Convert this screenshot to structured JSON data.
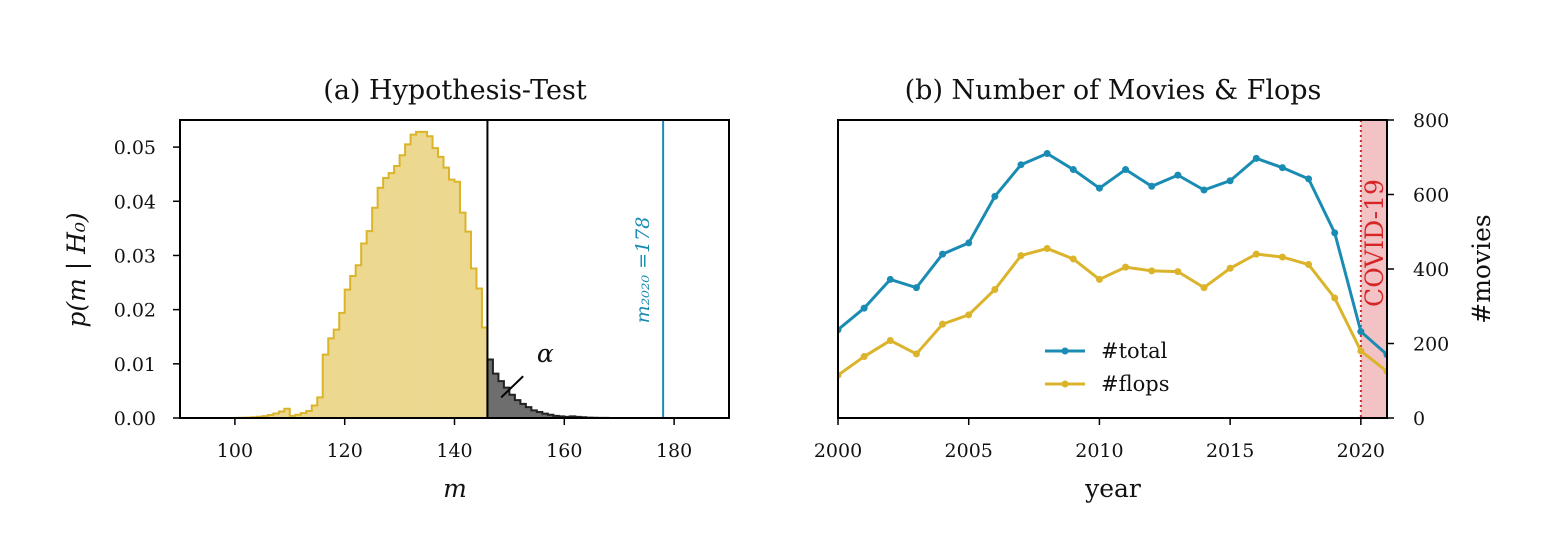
{
  "colors": {
    "yellow": "#dbb42c",
    "yellow_fill": "#ecd88e",
    "gray_fill": "#6e6e6e",
    "blue": "#1a8cb3",
    "covid": "#d62728",
    "covid_band": "#f3c2c5"
  },
  "chart_data": [
    {
      "type": "histogram",
      "title": "(a) Hypothesis-Test",
      "xlabel": "m",
      "ylabel": "p(m | H₀)",
      "xlim": [
        90,
        190
      ],
      "ylim": [
        0,
        0.055
      ],
      "xticks": [
        "100",
        "120",
        "140",
        "160",
        "180"
      ],
      "yticks": [
        "0.00",
        "0.01",
        "0.02",
        "0.03",
        "0.04",
        "0.05"
      ],
      "bin_start": 90,
      "bin_width": 1,
      "threshold": 146,
      "values": [
        0,
        0,
        0,
        0,
        0,
        0,
        0,
        0,
        0,
        0,
        2e-05,
        4e-05,
        8e-05,
        0.00013,
        0.00022,
        0.00035,
        0.00055,
        0.00083,
        0.0012,
        0.0017,
        0.0023,
        0.0031,
        0.0041,
        0.0054,
        0.0069,
        0.0086,
        0.0106,
        0.0128,
        0.0152,
        0.0178,
        0.0205,
        0.0233,
        0.0262,
        0.029,
        0.0318,
        0.0344,
        0.0368,
        0.0389,
        0.0408,
        0.0423,
        0.0435,
        0.0441,
        0.0441,
        0.0438,
        0.0431,
        0.042,
        0.0405,
        0.0388,
        0.0369,
        0.0347,
        0.0324,
        0.0299,
        0.0273,
        0.0247,
        0.0221,
        0.0195,
        0.017,
        0.0147,
        0.0125,
        0.0105,
        0.0087,
        0.0071,
        0.0057,
        0.0045,
        0.0035,
        0.0026,
        0.0019,
        0.0014,
        0.001,
        0.0007,
        0.0005,
        0.0003,
        0.0002,
        0.00013,
        8e-05,
        5e-05,
        3e-05,
        2e-05,
        1e-05,
        0
      ],
      "peak_override": {
        "130": 0.0485,
        "131": 0.0505,
        "132": 0.0523,
        "133": 0.0528,
        "134": 0.0528,
        "135": 0.052,
        "136": 0.0498,
        "137": 0.0482,
        "138": 0.0462,
        "139": 0.044,
        "120": 0.0237,
        "121": 0.0262,
        "122": 0.0282,
        "123": 0.0322,
        "124": 0.0345,
        "125": 0.0388,
        "126": 0.0425,
        "127": 0.0443,
        "128": 0.0452,
        "129": 0.0465,
        "116": 0.0117,
        "117": 0.0147,
        "118": 0.0163,
        "119": 0.0194,
        "140": 0.0436,
        "141": 0.0379,
        "142": 0.0344,
        "143": 0.0276,
        "144": 0.0239,
        "145": 0.0167,
        "146": 0.0108,
        "147": 0.0082,
        "148": 0.0068,
        "149": 0.0056,
        "150": 0.0043,
        "151": 0.0033,
        "152": 0.0026,
        "153": 0.002,
        "154": 0.0014,
        "155": 0.0011,
        "156": 0.0008,
        "157": 0.0006,
        "158": 0.0004,
        "159": 0.0003,
        "160": 0.0002,
        "110": 0.0004,
        "111": 0.0006,
        "112": 0.0009,
        "113": 0.0013,
        "114": 0.0023,
        "115": 0.0038
      },
      "observed_value": 178,
      "observed_label": "m₂₀₂₀ =178",
      "annotation": "α"
    },
    {
      "type": "line",
      "title": "(b) Number of Movies & Flops",
      "xlabel": "year",
      "ylabel": "#movies",
      "xlim": [
        2000,
        2021
      ],
      "ylim": [
        0,
        800
      ],
      "xticks": [
        "2000",
        "2005",
        "2010",
        "2015",
        "2020"
      ],
      "yticks": [
        "0",
        "200",
        "400",
        "600",
        "800"
      ],
      "legend": "center-bottom",
      "series": [
        {
          "name": "#total",
          "x": [
            2000,
            2001,
            2002,
            2003,
            2004,
            2005,
            2006,
            2007,
            2008,
            2009,
            2010,
            2011,
            2012,
            2013,
            2014,
            2015,
            2016,
            2017,
            2018,
            2019,
            2020,
            2021
          ],
          "values": [
            237,
            295,
            372,
            350,
            440,
            470,
            595,
            680,
            710,
            667,
            617,
            667,
            622,
            652,
            612,
            637,
            697,
            672,
            642,
            497,
            232,
            170
          ]
        },
        {
          "name": "#flops",
          "x": [
            2000,
            2001,
            2002,
            2003,
            2004,
            2005,
            2006,
            2007,
            2008,
            2009,
            2010,
            2011,
            2012,
            2013,
            2014,
            2015,
            2016,
            2017,
            2018,
            2019,
            2020,
            2021
          ],
          "values": [
            115,
            165,
            208,
            172,
            252,
            277,
            345,
            436,
            455,
            427,
            372,
            405,
            395,
            393,
            350,
            402,
            440,
            432,
            412,
            322,
            180,
            125
          ]
        }
      ],
      "covid_start": 2020,
      "covid_label": "COVID-19"
    }
  ]
}
